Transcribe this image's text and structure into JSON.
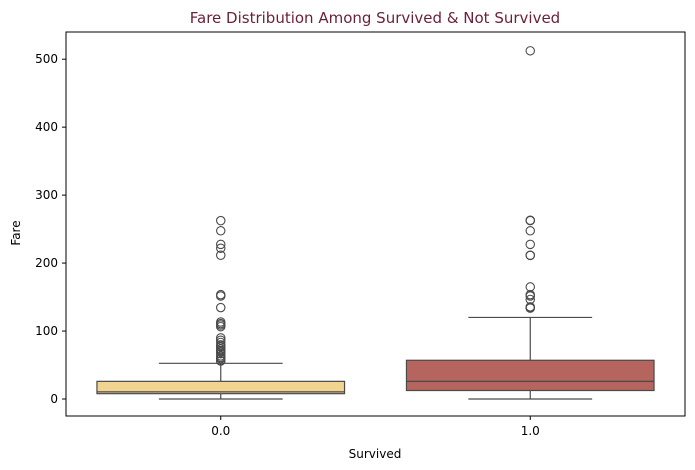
{
  "chart_data": {
    "type": "box",
    "title": "Fare Distribution Among Survived & Not Survived",
    "xlabel": "Survived",
    "ylabel": "Fare",
    "categories": [
      "0.0",
      "1.0"
    ],
    "ylim": [
      -25,
      540
    ],
    "yticks": [
      0,
      100,
      200,
      300,
      400,
      500
    ],
    "grid": false,
    "colors": {
      "title": "#6b1f3b",
      "box_0": "#f2d491",
      "box_1": "#b5655e",
      "stroke": "#4a4a4a"
    },
    "boxes": [
      {
        "category": "0.0",
        "q1": 7.85,
        "median": 10.5,
        "q3": 26.0,
        "whisker_low": 0,
        "whisker_high": 52.5,
        "outliers": [
          55.9,
          56.5,
          59.4,
          61.2,
          63.4,
          66.6,
          69.5,
          71,
          73.5,
          76.7,
          77.3,
          79.6,
          83.2,
          86.5,
          90,
          106.4,
          108.9,
          110.9,
          113.3,
          134.5,
          151.6,
          153.5,
          211.5,
          221.8,
          227.5,
          247.5,
          262.4
        ]
      },
      {
        "category": "1.0",
        "q1": 12.5,
        "median": 26.0,
        "q3": 57.0,
        "whisker_low": 0,
        "whisker_high": 120,
        "outliers": [
          133.7,
          134.5,
          135.6,
          146.5,
          151.6,
          153.5,
          164.9,
          211.3,
          211.5,
          227.5,
          247.5,
          262.4,
          263,
          512.3
        ]
      }
    ]
  }
}
